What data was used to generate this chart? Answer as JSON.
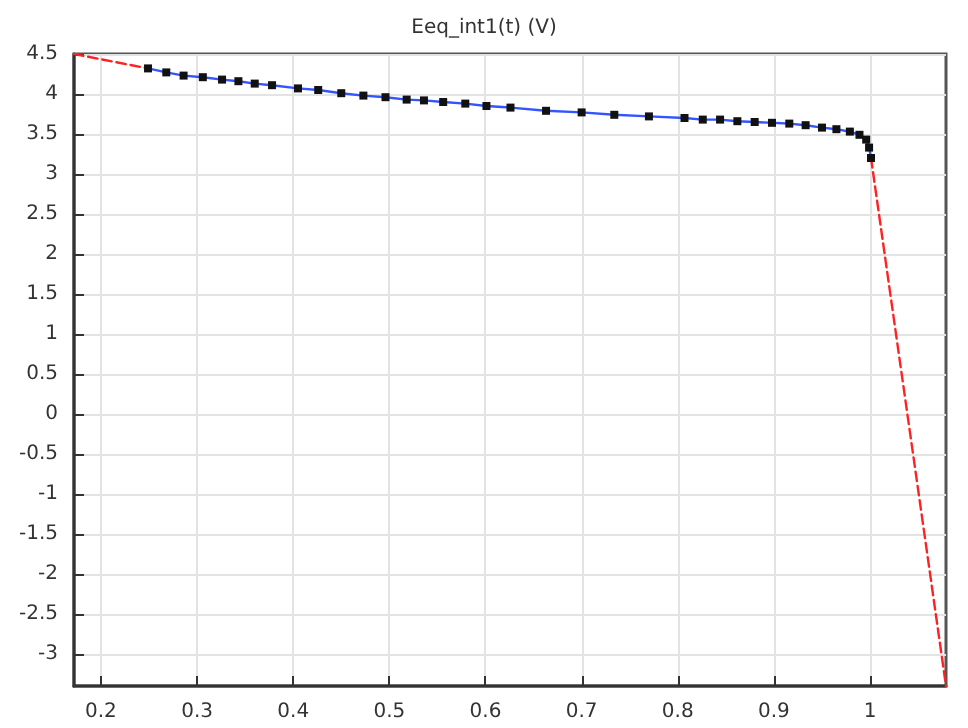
{
  "chart_data": {
    "type": "line",
    "title": "Eeq_int1(t) (V)",
    "xlim": [
      0.172,
      1.079
    ],
    "ylim": [
      -3.4,
      4.5
    ],
    "xticks": [
      0.2,
      0.3,
      0.4,
      0.5,
      0.6,
      0.7,
      0.8,
      0.9,
      1
    ],
    "yticks": [
      -3,
      -2.5,
      -2,
      -1.5,
      -1,
      -0.5,
      0,
      0.5,
      1,
      1.5,
      2,
      2.5,
      3,
      3.5,
      4,
      4.5
    ],
    "grid": true,
    "series": [
      {
        "color": "#ff2222",
        "line_style": "dashed",
        "x": [
          0.172,
          0.249
        ],
        "values": [
          4.5,
          4.32
        ]
      },
      {
        "color": "#3355ff",
        "line_style": "solid",
        "marker": "square",
        "x": [
          0.249,
          0.268,
          0.286,
          0.306,
          0.326,
          0.343,
          0.36,
          0.378,
          0.405,
          0.426,
          0.45,
          0.473,
          0.496,
          0.518,
          0.536,
          0.556,
          0.579,
          0.601,
          0.626,
          0.663,
          0.7,
          0.734,
          0.77,
          0.807,
          0.826,
          0.844,
          0.862,
          0.88,
          0.898,
          0.916,
          0.933,
          0.95,
          0.965,
          0.979,
          0.989,
          0.996,
          0.999,
          1.001
        ],
        "values": [
          4.32,
          4.27,
          4.23,
          4.21,
          4.18,
          4.16,
          4.13,
          4.11,
          4.07,
          4.05,
          4.01,
          3.98,
          3.96,
          3.93,
          3.92,
          3.9,
          3.88,
          3.85,
          3.83,
          3.79,
          3.77,
          3.74,
          3.72,
          3.7,
          3.68,
          3.68,
          3.66,
          3.65,
          3.64,
          3.63,
          3.61,
          3.58,
          3.56,
          3.53,
          3.49,
          3.43,
          3.33,
          3.2
        ]
      },
      {
        "color": "#ff2222",
        "line_style": "dashed",
        "x": [
          1.001,
          1.079
        ],
        "values": [
          3.2,
          -3.4
        ]
      }
    ]
  }
}
